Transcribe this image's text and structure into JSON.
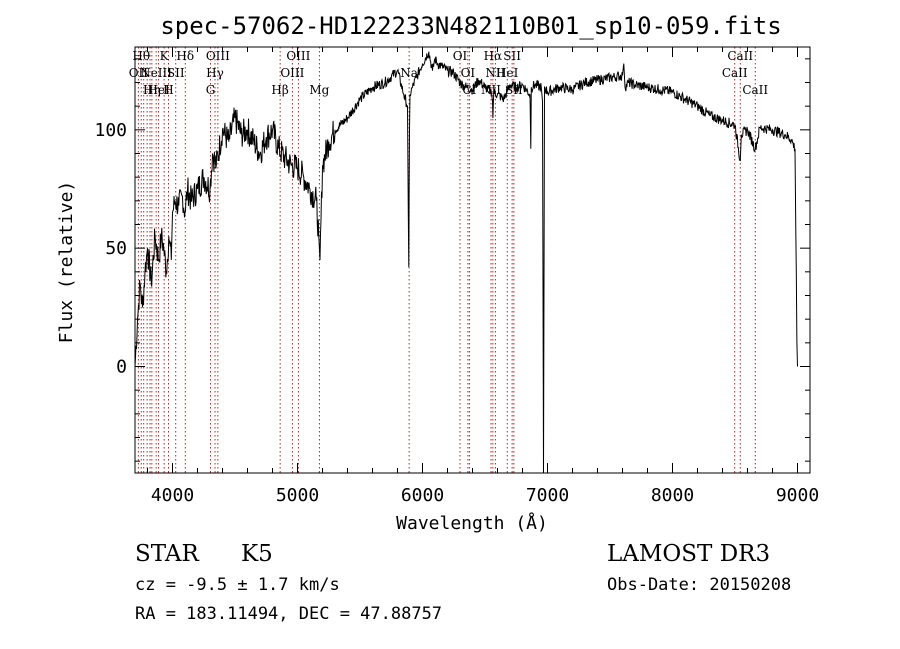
{
  "chart_data": {
    "type": "line",
    "title": "spec-57062-HD122233N482110B01_sp10-059.fits",
    "xlabel": "Wavelength (Å)",
    "ylabel": "Flux (relative)",
    "xlim": [
      3700,
      9100
    ],
    "ylim": [
      -45,
      135
    ],
    "xticks": [
      4000,
      5000,
      6000,
      7000,
      8000,
      9000
    ],
    "yticks": [
      0,
      50,
      100
    ],
    "grid": false,
    "series": [
      {
        "name": "flux",
        "x": [
          3700,
          3720,
          3740,
          3760,
          3780,
          3800,
          3830,
          3860,
          3890,
          3910,
          3930,
          3950,
          3970,
          3990,
          4000,
          4020,
          4050,
          4080,
          4100,
          4120,
          4150,
          4200,
          4250,
          4300,
          4320,
          4350,
          4400,
          4450,
          4500,
          4550,
          4600,
          4650,
          4700,
          4750,
          4800,
          4850,
          4900,
          4950,
          5000,
          5050,
          5100,
          5150,
          5170,
          5180,
          5200,
          5250,
          5300,
          5400,
          5500,
          5600,
          5700,
          5800,
          5850,
          5880,
          5890,
          5896,
          5900,
          5920,
          5950,
          6000,
          6050,
          6080,
          6100,
          6120,
          6150,
          6200,
          6250,
          6300,
          6350,
          6400,
          6450,
          6500,
          6550,
          6560,
          6563,
          6570,
          6600,
          6650,
          6700,
          6750,
          6800,
          6860,
          6866,
          6870,
          6900,
          6950,
          6960,
          6968,
          6976,
          7000,
          7100,
          7200,
          7300,
          7400,
          7500,
          7600,
          7610,
          7620,
          7650,
          7700,
          7800,
          7900,
          8000,
          8100,
          8200,
          8300,
          8400,
          8500,
          8542,
          8550,
          8600,
          8662,
          8700,
          8800,
          8900,
          8950,
          8980,
          8990,
          8995,
          9000
        ],
        "values": [
          0,
          20,
          35,
          25,
          40,
          50,
          35,
          55,
          45,
          55,
          50,
          40,
          55,
          45,
          65,
          70,
          68,
          72,
          65,
          75,
          70,
          75,
          80,
          75,
          90,
          85,
          100,
          95,
          105,
          98,
          100,
          95,
          90,
          97,
          100,
          92,
          88,
          85,
          84,
          80,
          75,
          70,
          55,
          45,
          85,
          95,
          100,
          105,
          113,
          118,
          120,
          125,
          115,
          110,
          42,
          100,
          115,
          118,
          122,
          128,
          133,
          125,
          130,
          128,
          127,
          125,
          124,
          120,
          118,
          117,
          121,
          118,
          116,
          112,
          105,
          116,
          115,
          113,
          119,
          118,
          119,
          115,
          92,
          118,
          119,
          118,
          112,
          -45,
          118,
          116,
          118,
          117,
          120,
          121,
          122,
          123,
          128,
          118,
          120,
          119,
          118,
          117,
          116,
          113,
          110,
          106,
          104,
          102,
          87,
          98,
          100,
          92,
          101,
          100,
          98,
          96,
          92,
          40,
          10,
          0
        ]
      }
    ],
    "lines": [
      {
        "wl": 3727,
        "label": "OII",
        "tier": 1
      },
      {
        "wl": 3750,
        "label": "Hθ",
        "tier": 0
      },
      {
        "wl": 3770,
        "label": "",
        "tier": -1
      },
      {
        "wl": 3797,
        "label": "",
        "tier": -1
      },
      {
        "wl": 3820,
        "label": "",
        "tier": -1
      },
      {
        "wl": 3835,
        "label": "Hη",
        "tier": 2
      },
      {
        "wl": 3869,
        "label": "NeIII",
        "tier": 1
      },
      {
        "wl": 3889,
        "label": "HeI",
        "tier": 2
      },
      {
        "wl": 3933,
        "label": "K",
        "tier": 0
      },
      {
        "wl": 3968,
        "label": "H",
        "tier": 2
      },
      {
        "wl": 4026,
        "label": "SII",
        "tier": 1
      },
      {
        "wl": 4102,
        "label": "Hδ",
        "tier": 0
      },
      {
        "wl": 4304,
        "label": "G",
        "tier": 2
      },
      {
        "wl": 4340,
        "label": "Hγ",
        "tier": 1
      },
      {
        "wl": 4363,
        "label": "OIII",
        "tier": 0
      },
      {
        "wl": 4861,
        "label": "Hβ",
        "tier": 2
      },
      {
        "wl": 4959,
        "label": "OIII",
        "tier": 1
      },
      {
        "wl": 5007,
        "label": "OIII",
        "tier": 0
      },
      {
        "wl": 5175,
        "label": "Mg",
        "tier": 2
      },
      {
        "wl": 5893,
        "label": "Na",
        "tier": 1
      },
      {
        "wl": 6300,
        "label": "OI",
        "tier": 0
      },
      {
        "wl": 6363,
        "label": "OI",
        "tier": 1
      },
      {
        "wl": 6375,
        "label": "CI",
        "tier": 2
      },
      {
        "wl": 6548,
        "label": "NII",
        "tier": 2
      },
      {
        "wl": 6563,
        "label": "Hα",
        "tier": 0
      },
      {
        "wl": 6583,
        "label": "NII",
        "tier": 1
      },
      {
        "wl": 6678,
        "label": "HeI",
        "tier": 1
      },
      {
        "wl": 6717,
        "label": "SII",
        "tier": 0
      },
      {
        "wl": 6731,
        "label": "SII",
        "tier": 2
      },
      {
        "wl": 8498,
        "label": "CaII",
        "tier": 1
      },
      {
        "wl": 8542,
        "label": "CaII",
        "tier": 0
      },
      {
        "wl": 8662,
        "label": "CaII",
        "tier": 2
      }
    ]
  },
  "info": {
    "object_class": "STAR",
    "subclass": "K5",
    "survey": "LAMOST DR3",
    "cz_line": "cz = -9.5 ± 1.7 km/s",
    "obs_date": "Obs-Date: 20150208",
    "coords": "RA = 183.11494, DEC =  47.88757"
  }
}
